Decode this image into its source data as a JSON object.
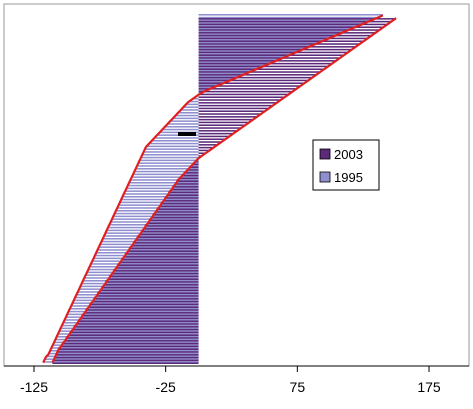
{
  "chart_data": {
    "type": "bar",
    "orientation": "horizontal",
    "xlim": [
      -125,
      175
    ],
    "xticks": [
      "-125",
      "-25",
      "75",
      "175"
    ],
    "ylabel": "",
    "xlabel": "",
    "title": "",
    "grid": false,
    "legend_position": "right-middle",
    "series": [
      {
        "name": "2003",
        "color": "#5b2a7a",
        "values_description_sorted_bottom_to_top": "interleaved",
        "values": [
          -111,
          -110,
          -109,
          -108,
          -107,
          -106,
          -104,
          -103,
          -101,
          -100,
          -98,
          -97,
          -95,
          -94,
          -92,
          -91,
          -89,
          -88,
          -86,
          -85,
          -83,
          -82,
          -80,
          -79,
          -77,
          -76,
          -74,
          -73,
          -71,
          -70,
          -68,
          -67,
          -65,
          -64,
          -62,
          -61,
          -59,
          -58,
          -56,
          -55,
          -53,
          -52,
          -50,
          -49,
          -47,
          -46,
          -44,
          -43,
          -41,
          -40,
          -38,
          -37,
          -35,
          -34,
          -32,
          -31,
          -29,
          -28,
          -26,
          -25,
          -23,
          -22,
          -20,
          -19,
          -17,
          -16,
          -14,
          -12,
          -10,
          -8,
          -6,
          -4,
          -2,
          0,
          3,
          6,
          9,
          12,
          15,
          18,
          21,
          24,
          27,
          30,
          33,
          36,
          39,
          42,
          45,
          48,
          51,
          54,
          57,
          60,
          63,
          66,
          69,
          72,
          75,
          78,
          81,
          84,
          87,
          90,
          93,
          96,
          99,
          102,
          105,
          108,
          111,
          114,
          117,
          120,
          123,
          126,
          129,
          132,
          135,
          138,
          141,
          144,
          147,
          150
        ]
      },
      {
        "name": "1995",
        "color": "#8f8fcf",
        "values": [
          -118,
          -117,
          -116,
          -114,
          -113,
          -112,
          -111,
          -110,
          -109,
          -108,
          -107,
          -106,
          -105,
          -104,
          -103,
          -102,
          -101,
          -100,
          -99,
          -98,
          -97,
          -96,
          -95,
          -94,
          -93,
          -92,
          -91,
          -90,
          -89,
          -88,
          -87,
          -86,
          -85,
          -84,
          -83,
          -82,
          -81,
          -80,
          -79,
          -78,
          -77,
          -76,
          -75,
          -74,
          -73,
          -72,
          -71,
          -70,
          -69,
          -68,
          -67,
          -66,
          -65,
          -64,
          -63,
          -62,
          -61,
          -60,
          -59,
          -58,
          -57,
          -56,
          -55,
          -54,
          -53,
          -52,
          -51,
          -50,
          -49,
          -48,
          -47,
          -46,
          -45,
          -44,
          -43,
          -42,
          -41,
          -40,
          -38,
          -36,
          -34,
          -32,
          -30,
          -28,
          -26,
          -24,
          -22,
          -20,
          -18,
          -16,
          -14,
          -12,
          -10,
          -8,
          -5,
          -2,
          1,
          5,
          10,
          15,
          20,
          25,
          30,
          35,
          40,
          45,
          50,
          55,
          60,
          65,
          70,
          75,
          80,
          85,
          90,
          95,
          100,
          105,
          110,
          115,
          120,
          125,
          130,
          135,
          140
        ]
      }
    ],
    "trend_lines": [
      {
        "name": "",
        "color": "#e02020"
      },
      {
        "name": "",
        "color": "#e02020"
      }
    ],
    "legend": [
      {
        "label": "2003",
        "color": "#5b2a7a"
      },
      {
        "label": "1995",
        "color": "#8f8fcf"
      }
    ]
  }
}
